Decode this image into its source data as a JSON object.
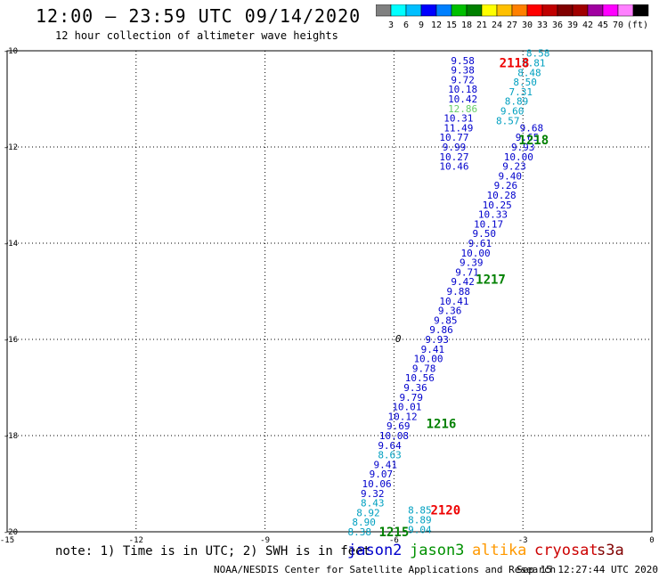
{
  "header": {
    "title": "12:00 – 23:59 UTC 09/14/2020",
    "subtitle": "12 hour collection of altimeter wave heights"
  },
  "colorbar": {
    "colors": [
      "#808080",
      "#00ffff",
      "#00bfff",
      "#0000ff",
      "#0080ff",
      "#00c000",
      "#008000",
      "#ffff00",
      "#ffc000",
      "#ff8000",
      "#ff0000",
      "#c00000",
      "#800000",
      "#a00000",
      "#a000a0",
      "#ff00ff",
      "#ff80ff",
      "#000000"
    ],
    "labels": [
      "3",
      "6",
      "9",
      "12",
      "15",
      "18",
      "21",
      "24",
      "27",
      "30",
      "33",
      "36",
      "39",
      "42",
      "45",
      "70"
    ],
    "unit": "(ft)"
  },
  "footer": {
    "note": "note: 1) Time is in UTC; 2) SWH is in feet",
    "credit": "NOAA/NESDIS Center for Satellite Applications and Research",
    "timestamp": "Sep 15 12:27:44 UTC 2020",
    "satellites": [
      {
        "name": "jason2",
        "color": "#0000cc"
      },
      {
        "name": "jason3",
        "color": "#009000"
      },
      {
        "name": "altika",
        "color": "#ff9900"
      },
      {
        "name": "cryosat",
        "color": "#cc0000"
      },
      {
        "name": "s3a",
        "color": "#800000"
      }
    ]
  },
  "chart_data": {
    "type": "scatter",
    "title": "12:00 – 23:59 UTC 09/14/2020",
    "subtitle": "12 hour collection of altimeter wave heights",
    "xlim": [
      -15,
      0
    ],
    "ylim": [
      -20,
      -10
    ],
    "x_ticks": [
      "-15",
      "-12",
      "-9",
      "-6",
      "-3",
      "0"
    ],
    "y_ticks": [
      "-10",
      "-12",
      "-14",
      "-16",
      "-18",
      "-20"
    ],
    "grid": true,
    "contour_label": "0",
    "time_labels": [
      {
        "text": "2118",
        "x": -3.2,
        "y": -10.25,
        "color": "#ee0000"
      },
      {
        "text": "1218",
        "x": -2.75,
        "y": -11.85,
        "color": "#008000"
      },
      {
        "text": "1217",
        "x": -3.75,
        "y": -14.75,
        "color": "#008000"
      },
      {
        "text": "1216",
        "x": -4.9,
        "y": -17.75,
        "color": "#008000"
      },
      {
        "text": "2120",
        "x": -4.8,
        "y": -19.55,
        "color": "#ee0000"
      },
      {
        "text": "1215",
        "x": -6.0,
        "y": -20.0,
        "color": "#008000"
      }
    ],
    "series": [
      {
        "name": "jason3",
        "color": "#0000cc",
        "points": [
          {
            "x": -4.4,
            "y": -10.2,
            "v": "9.58"
          },
          {
            "x": -4.4,
            "y": -10.4,
            "v": "9.38"
          },
          {
            "x": -4.4,
            "y": -10.6,
            "v": "9.72"
          },
          {
            "x": -4.4,
            "y": -10.8,
            "v": "10.18"
          },
          {
            "x": -4.4,
            "y": -11.0,
            "v": "10.42"
          },
          {
            "x": -4.4,
            "y": -11.2,
            "v": "12.86",
            "color": "#66cc66"
          },
          {
            "x": -4.5,
            "y": -11.4,
            "v": "10.31"
          },
          {
            "x": -4.5,
            "y": -11.6,
            "v": "11.49"
          },
          {
            "x": -4.6,
            "y": -11.8,
            "v": "10.77"
          },
          {
            "x": -4.6,
            "y": -12.0,
            "v": "9.99"
          },
          {
            "x": -4.6,
            "y": -12.2,
            "v": "10.27"
          },
          {
            "x": -4.6,
            "y": -12.4,
            "v": "10.46"
          }
        ]
      },
      {
        "name": "jason2",
        "color": "#0000cc",
        "points": [
          {
            "x": -2.8,
            "y": -11.6,
            "v": "9.68"
          },
          {
            "x": -2.9,
            "y": -11.8,
            "v": "9.65"
          },
          {
            "x": -3.0,
            "y": -12.0,
            "v": "9.93"
          },
          {
            "x": -3.1,
            "y": -12.2,
            "v": "10.00"
          },
          {
            "x": -3.2,
            "y": -12.4,
            "v": "9.23"
          },
          {
            "x": -3.3,
            "y": -12.6,
            "v": "9.40"
          },
          {
            "x": -3.4,
            "y": -12.8,
            "v": "9.26"
          },
          {
            "x": -3.5,
            "y": -13.0,
            "v": "10.28"
          },
          {
            "x": -3.6,
            "y": -13.2,
            "v": "10.25"
          },
          {
            "x": -3.7,
            "y": -13.4,
            "v": "10.33"
          },
          {
            "x": -3.8,
            "y": -13.6,
            "v": "10.17"
          },
          {
            "x": -3.9,
            "y": -13.8,
            "v": "9.50"
          },
          {
            "x": -4.0,
            "y": -14.0,
            "v": "9.61"
          },
          {
            "x": -4.1,
            "y": -14.2,
            "v": "10.00"
          },
          {
            "x": -4.2,
            "y": -14.4,
            "v": "9.39"
          },
          {
            "x": -4.3,
            "y": -14.6,
            "v": "9.71"
          },
          {
            "x": -4.4,
            "y": -14.8,
            "v": "9.42"
          },
          {
            "x": -4.5,
            "y": -15.0,
            "v": "9.88"
          },
          {
            "x": -4.6,
            "y": -15.2,
            "v": "10.41"
          },
          {
            "x": -4.7,
            "y": -15.4,
            "v": "9.36"
          },
          {
            "x": -4.8,
            "y": -15.6,
            "v": "9.85"
          },
          {
            "x": -4.9,
            "y": -15.8,
            "v": "9.86"
          },
          {
            "x": -5.0,
            "y": -16.0,
            "v": "9.93"
          },
          {
            "x": -5.1,
            "y": -16.2,
            "v": "9.41"
          },
          {
            "x": -5.2,
            "y": -16.4,
            "v": "10.00"
          },
          {
            "x": -5.3,
            "y": -16.6,
            "v": "9.78"
          },
          {
            "x": -5.4,
            "y": -16.8,
            "v": "10.56"
          },
          {
            "x": -5.5,
            "y": -17.0,
            "v": "9.36"
          },
          {
            "x": -5.6,
            "y": -17.2,
            "v": "9.79"
          },
          {
            "x": -5.7,
            "y": -17.4,
            "v": "10.01"
          },
          {
            "x": -5.8,
            "y": -17.6,
            "v": "10.12"
          },
          {
            "x": -5.9,
            "y": -17.8,
            "v": "9.69"
          },
          {
            "x": -6.0,
            "y": -18.0,
            "v": "10.08"
          },
          {
            "x": -6.1,
            "y": -18.2,
            "v": "9.64"
          },
          {
            "x": -6.2,
            "y": -18.6,
            "v": "9.41"
          },
          {
            "x": -6.3,
            "y": -18.8,
            "v": "9.07"
          },
          {
            "x": -6.4,
            "y": -19.0,
            "v": "10.06"
          },
          {
            "x": -6.5,
            "y": -19.2,
            "v": "9.32"
          }
        ]
      },
      {
        "name": "cyan-track",
        "color": "#00a0c0",
        "points": [
          {
            "x": -2.65,
            "y": -10.05,
            "v": "8.58"
          },
          {
            "x": -2.75,
            "y": -10.25,
            "v": "8.81"
          },
          {
            "x": -2.85,
            "y": -10.45,
            "v": "8.48"
          },
          {
            "x": -2.95,
            "y": -10.65,
            "v": "8.50"
          },
          {
            "x": -3.05,
            "y": -10.85,
            "v": "7.31"
          },
          {
            "x": -3.15,
            "y": -11.05,
            "v": "8.89"
          },
          {
            "x": -3.25,
            "y": -11.25,
            "v": "9.60"
          },
          {
            "x": -3.35,
            "y": -11.45,
            "v": "8.57"
          },
          {
            "x": -6.1,
            "y": -18.4,
            "v": "8.63"
          },
          {
            "x": -6.5,
            "y": -19.4,
            "v": "8.43"
          },
          {
            "x": -6.6,
            "y": -19.6,
            "v": "8.92"
          },
          {
            "x": -6.7,
            "y": -19.8,
            "v": "8.90"
          },
          {
            "x": -6.8,
            "y": -20.0,
            "v": "8.38"
          },
          {
            "x": -5.4,
            "y": -19.55,
            "v": "8.85"
          },
          {
            "x": -5.4,
            "y": -19.75,
            "v": "8.89"
          },
          {
            "x": -5.4,
            "y": -19.95,
            "v": "9.04"
          }
        ]
      }
    ]
  }
}
